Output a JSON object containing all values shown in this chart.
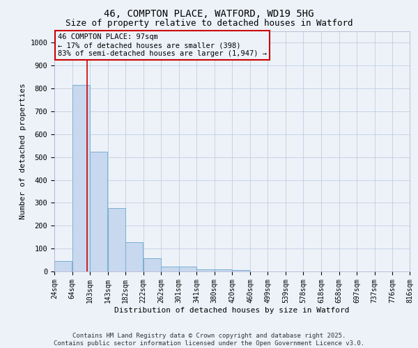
{
  "title_line1": "46, COMPTON PLACE, WATFORD, WD19 5HG",
  "title_line2": "Size of property relative to detached houses in Watford",
  "xlabel": "Distribution of detached houses by size in Watford",
  "ylabel": "Number of detached properties",
  "bar_color": "#c8d8ee",
  "bar_edge_color": "#7aafd4",
  "bar_left_edges": [
    24,
    64,
    103,
    143,
    182,
    222,
    262,
    301,
    341,
    380,
    420,
    460,
    499,
    539,
    578,
    618,
    658,
    697,
    737,
    776
  ],
  "bar_heights": [
    46,
    815,
    525,
    278,
    128,
    58,
    20,
    20,
    10,
    10,
    5,
    0,
    0,
    0,
    0,
    0,
    0,
    0,
    0,
    0
  ],
  "bin_width": 39,
  "property_size": 97,
  "vline_color": "#cc0000",
  "annotation_text": "46 COMPTON PLACE: 97sqm\n← 17% of detached houses are smaller (398)\n83% of semi-detached houses are larger (1,947) →",
  "annotation_box_color": "#cc0000",
  "ylim": [
    0,
    1050
  ],
  "yticks": [
    0,
    100,
    200,
    300,
    400,
    500,
    600,
    700,
    800,
    900,
    1000
  ],
  "tick_labels": [
    "24sqm",
    "64sqm",
    "103sqm",
    "143sqm",
    "182sqm",
    "222sqm",
    "262sqm",
    "301sqm",
    "341sqm",
    "380sqm",
    "420sqm",
    "460sqm",
    "499sqm",
    "539sqm",
    "578sqm",
    "618sqm",
    "658sqm",
    "697sqm",
    "737sqm",
    "776sqm",
    "816sqm"
  ],
  "grid_color": "#c0cfe0",
  "bg_color": "#edf2f9",
  "footer_text": "Contains HM Land Registry data © Crown copyright and database right 2025.\nContains public sector information licensed under the Open Government Licence v3.0.",
  "title_fontsize": 10,
  "subtitle_fontsize": 9,
  "axis_label_fontsize": 8,
  "tick_fontsize": 7,
  "annotation_fontsize": 7.5,
  "footer_fontsize": 6.5
}
